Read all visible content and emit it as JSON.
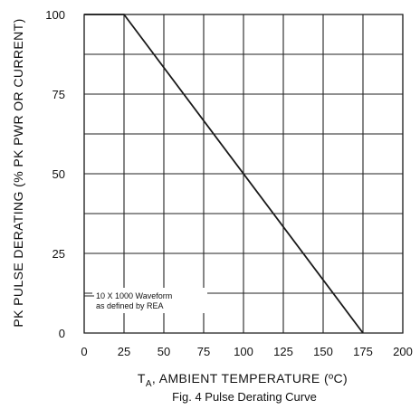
{
  "chart_data": {
    "type": "line",
    "title": "",
    "caption": "Fig. 4  Pulse Derating Curve",
    "xlabel": {
      "main": "T",
      "sub": "A",
      "rest": ", AMBIENT TEMPERATURE (ºC)"
    },
    "ylabel": "PK PULSE DERATING (% PK PWR OR CURRENT)",
    "xlim": [
      0,
      200
    ],
    "ylim": [
      0,
      100
    ],
    "x_ticks": [
      0,
      25,
      50,
      75,
      100,
      125,
      150,
      175,
      200
    ],
    "y_ticks": [
      0,
      25,
      50,
      75,
      100
    ],
    "grid": true,
    "series": [
      {
        "x": [
          0,
          25,
          175
        ],
        "y": [
          100,
          100,
          0
        ]
      }
    ],
    "annotation": {
      "line1": "10 X 1000 Waveform",
      "line2": "as defined by REA"
    },
    "colors": {
      "line": "#1a1a1a",
      "grid": "#222222",
      "background": "#ffffff"
    }
  }
}
